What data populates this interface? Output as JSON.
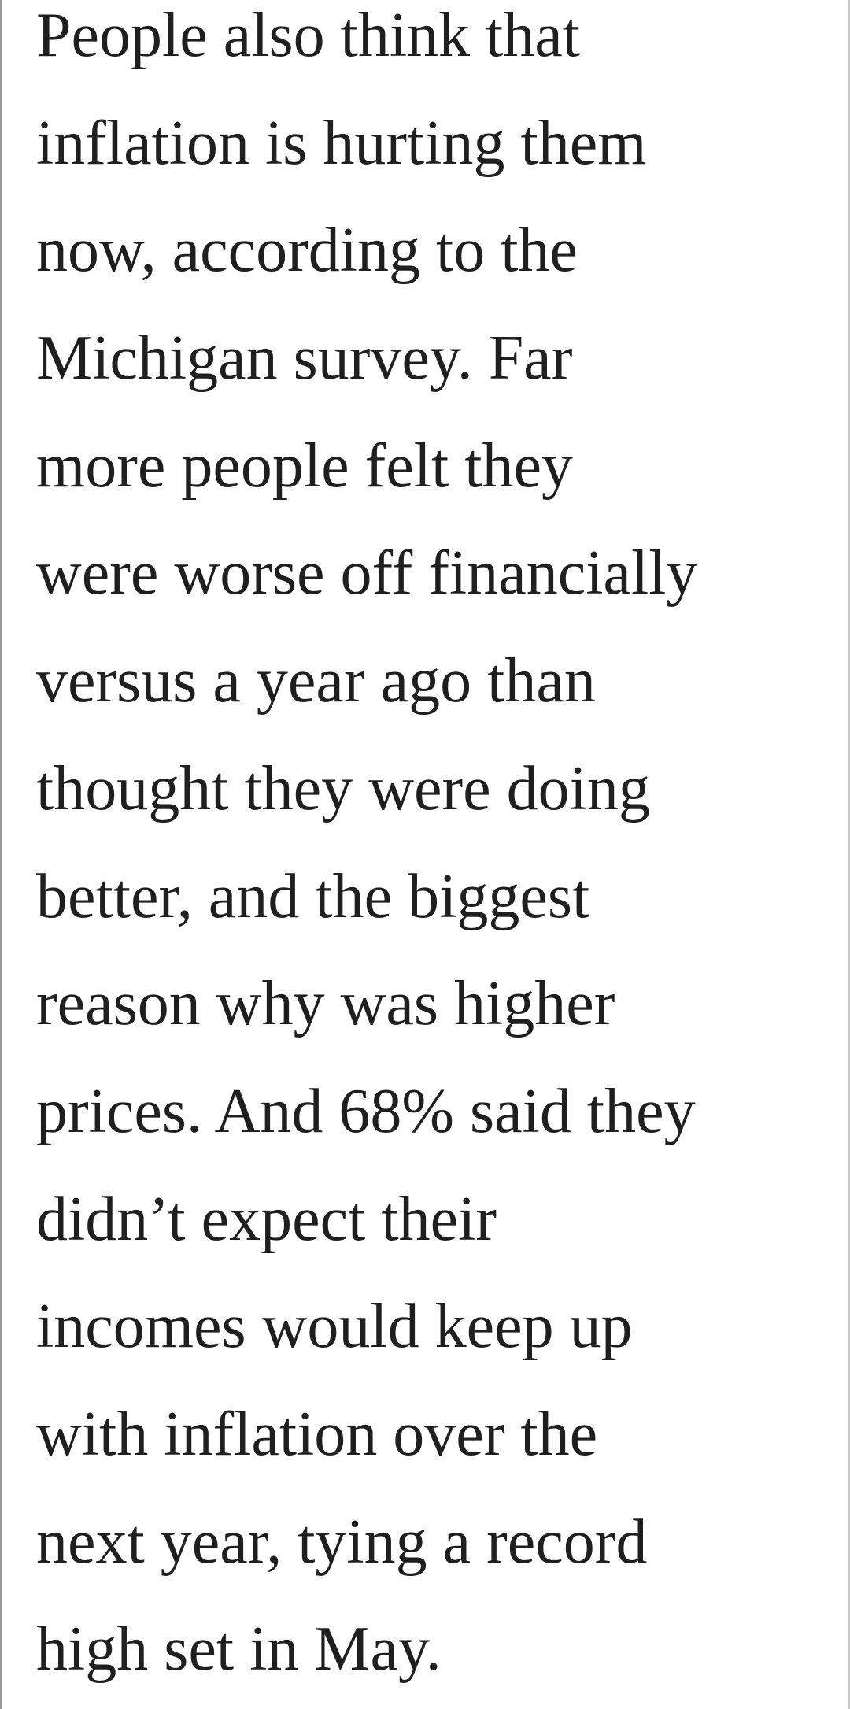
{
  "article": {
    "lines": [
      "People also think that",
      "inflation is hurting them",
      "now, according to the",
      "Michigan survey. Far",
      "more people felt they",
      "were worse off financially",
      "versus a year ago than",
      "thought they were doing",
      "better, and the biggest",
      "reason why was higher",
      "prices. And 68% said they",
      "didn’t expect their",
      "incomes would keep up",
      "with inflation over the",
      "next year, tying a record",
      "high set in May."
    ]
  }
}
